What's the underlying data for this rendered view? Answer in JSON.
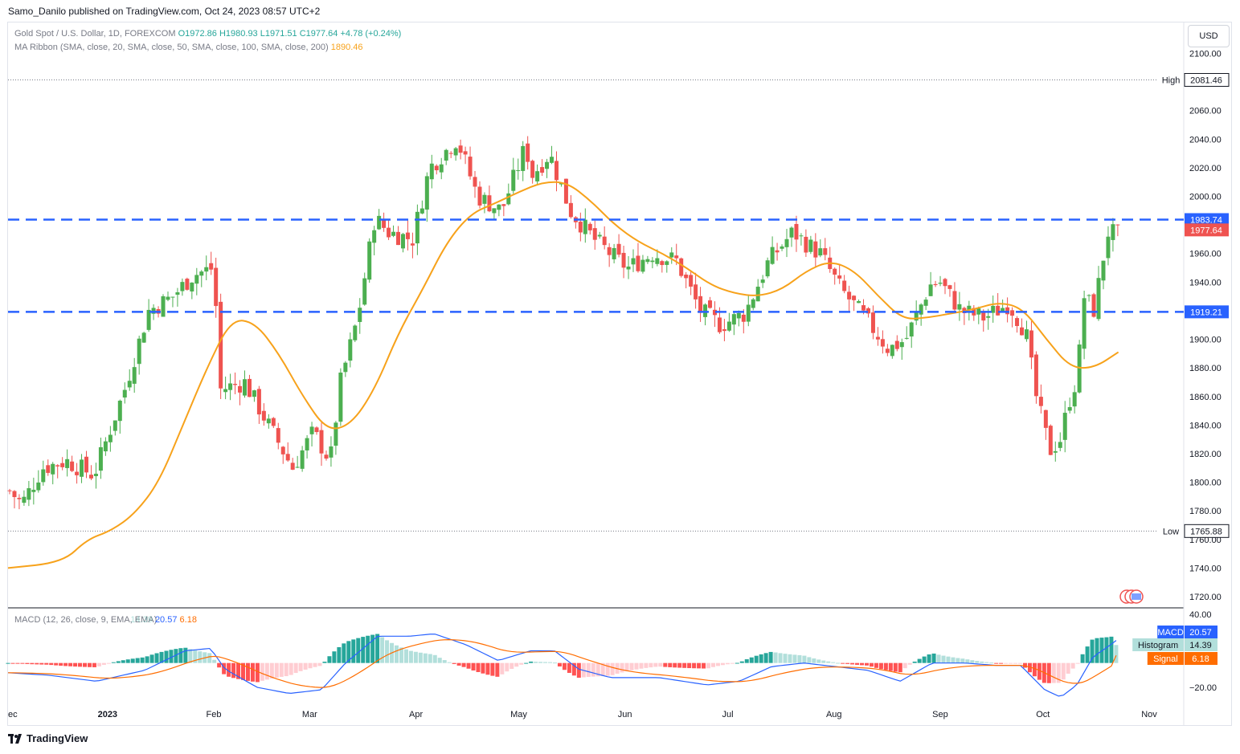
{
  "caption": "Samo_Danilo published on TradingView.com, Oct 24, 2023 08:57 UTC+2",
  "brand": "TradingView",
  "currency_button": "USD",
  "legend": {
    "symbol": "Gold Spot / U.S. Dollar, 1D, FOREXCOM",
    "open": "O1972.86",
    "high": "H1980.93",
    "low": "L1971.51",
    "close": "C1977.64",
    "change": "+4.78 (+0.24%)",
    "ma_label": "MA Ribbon (SMA, close, 20, SMA, close, 50, SMA, close, 100, SMA, close, 200)",
    "ma_value": "1890.46",
    "macd_label": "MACD (12, 26, close, 9, EMA, EMA)",
    "macd_hist_value": "14.39",
    "macd_value": "20.57",
    "macd_signal_value": "6.18"
  },
  "colors": {
    "up": "#26a69a",
    "candle_up": "#4caf50",
    "down": "#ef5350",
    "ma": "#f7a21b",
    "level": "#2962ff",
    "macd_line": "#2962ff",
    "signal_line": "#ff6d00",
    "hist_up_strong": "#26a69a",
    "hist_up_weak": "#b2dfdb",
    "hist_down_strong": "#ff5252",
    "hist_down_weak": "#ffcdd2"
  },
  "chart_data": [
    {
      "type": "candlestick",
      "title": "Gold Spot / U.S. Dollar, 1D, FOREXCOM",
      "y_ticks": [
        2100,
        2060,
        2040,
        2020,
        2000,
        1960,
        1940,
        1900,
        1880,
        1860,
        1840,
        1820,
        1800,
        1780,
        1760,
        1740,
        1720
      ],
      "x_ticks": [
        "ec",
        "2023",
        "Feb",
        "Mar",
        "Apr",
        "May",
        "Jun",
        "Jul",
        "Aug",
        "Sep",
        "Oct",
        "Nov"
      ],
      "ylim": [
        1712,
        2112
      ],
      "high_label": "High",
      "high_value": "2081.46",
      "low_label": "Low",
      "low_value": "1765.88",
      "horizontal_levels": [
        {
          "value": "1983.74",
          "style": "dashed"
        },
        {
          "value": "1919.21",
          "style": "dashed"
        }
      ],
      "last_price": "1977.64",
      "ma_series_name": "MA Ribbon",
      "ma_points": [
        [
          "2022-12-19",
          1744
        ],
        [
          "2022-12-26",
          1760
        ],
        [
          "2023-01-02",
          1766
        ],
        [
          "2023-01-09",
          1778
        ],
        [
          "2023-01-16",
          1800
        ],
        [
          "2023-01-23",
          1840
        ],
        [
          "2023-01-30",
          1880
        ],
        [
          "2023-02-06",
          1914
        ],
        [
          "2023-02-13",
          1912
        ],
        [
          "2023-02-20",
          1890
        ],
        [
          "2023-02-27",
          1860
        ],
        [
          "2023-03-06",
          1836
        ],
        [
          "2023-03-13",
          1840
        ],
        [
          "2023-03-20",
          1865
        ],
        [
          "2023-03-27",
          1905
        ],
        [
          "2023-04-03",
          1935
        ],
        [
          "2023-04-10",
          1968
        ],
        [
          "2023-04-17",
          1988
        ],
        [
          "2023-04-24",
          1995
        ],
        [
          "2023-05-01",
          2003
        ],
        [
          "2023-05-08",
          2010
        ],
        [
          "2023-05-15",
          2010
        ],
        [
          "2023-05-22",
          1997
        ],
        [
          "2023-05-29",
          1980
        ],
        [
          "2023-06-05",
          1968
        ],
        [
          "2023-06-12",
          1960
        ],
        [
          "2023-06-19",
          1950
        ],
        [
          "2023-06-26",
          1938
        ],
        [
          "2023-07-03",
          1932
        ],
        [
          "2023-07-10",
          1930
        ],
        [
          "2023-07-17",
          1935
        ],
        [
          "2023-07-24",
          1948
        ],
        [
          "2023-07-31",
          1955
        ],
        [
          "2023-08-07",
          1948
        ],
        [
          "2023-08-14",
          1930
        ],
        [
          "2023-08-21",
          1914
        ],
        [
          "2023-08-28",
          1915
        ],
        [
          "2023-09-04",
          1918
        ],
        [
          "2023-09-11",
          1921
        ],
        [
          "2023-09-18",
          1926
        ],
        [
          "2023-09-25",
          1922
        ],
        [
          "2023-10-02",
          1900
        ],
        [
          "2023-10-09",
          1880
        ],
        [
          "2023-10-16",
          1880
        ],
        [
          "2023-10-23",
          1891
        ]
      ]
    },
    {
      "type": "line+histogram",
      "title": "MACD (12, 26, close, 9, EMA, EMA)",
      "y_ticks": [
        40.0,
        -20.0
      ],
      "ylim": [
        -30,
        45
      ],
      "series": [
        {
          "name": "MACD",
          "value": "20.57"
        },
        {
          "name": "Histogram",
          "value": "14.39"
        },
        {
          "name": "Signal",
          "value": "6.18"
        }
      ]
    }
  ]
}
